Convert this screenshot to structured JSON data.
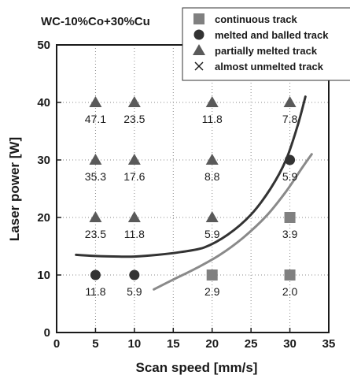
{
  "chart_data": {
    "type": "scatter",
    "title": "WC-10%Co+30%Cu",
    "xlabel": "Scan speed [mm/s]",
    "ylabel": "Laser power [W]",
    "xlim": [
      0,
      35
    ],
    "ylim": [
      0,
      50
    ],
    "xticks": [
      0,
      5,
      10,
      15,
      20,
      25,
      30,
      35
    ],
    "yticks": [
      0,
      10,
      20,
      30,
      40,
      50
    ],
    "grid": "dotted",
    "legend_position": "top-right",
    "legend": [
      {
        "label": "continuous track",
        "marker": "square",
        "color": "#808080"
      },
      {
        "label": "melted and balled track",
        "marker": "circle",
        "color": "#333333"
      },
      {
        "label": "partially melted track",
        "marker": "triangle",
        "color": "#5a5a5a"
      },
      {
        "label": "almost unmelted track",
        "marker": "x",
        "color": "#1a1a1a"
      }
    ],
    "points": [
      {
        "x": 5,
        "y": 40,
        "marker": "triangle",
        "label": "47.1"
      },
      {
        "x": 10,
        "y": 40,
        "marker": "triangle",
        "label": "23.5"
      },
      {
        "x": 20,
        "y": 40,
        "marker": "triangle",
        "label": "11.8"
      },
      {
        "x": 30,
        "y": 40,
        "marker": "triangle",
        "label": "7.8"
      },
      {
        "x": 5,
        "y": 30,
        "marker": "triangle",
        "label": "35.3"
      },
      {
        "x": 10,
        "y": 30,
        "marker": "triangle",
        "label": "17.6"
      },
      {
        "x": 20,
        "y": 30,
        "marker": "triangle",
        "label": "8.8"
      },
      {
        "x": 30,
        "y": 30,
        "marker": "circle",
        "label": "5.9"
      },
      {
        "x": 5,
        "y": 20,
        "marker": "triangle",
        "label": "23.5"
      },
      {
        "x": 10,
        "y": 20,
        "marker": "triangle",
        "label": "11.8"
      },
      {
        "x": 20,
        "y": 20,
        "marker": "triangle",
        "label": "5.9"
      },
      {
        "x": 30,
        "y": 20,
        "marker": "square",
        "label": "3.9"
      },
      {
        "x": 5,
        "y": 10,
        "marker": "circle",
        "label": "11.8"
      },
      {
        "x": 10,
        "y": 10,
        "marker": "circle",
        "label": "5.9"
      },
      {
        "x": 20,
        "y": 10,
        "marker": "square",
        "label": "2.9"
      },
      {
        "x": 30,
        "y": 10,
        "marker": "square",
        "label": "2.0"
      }
    ],
    "curves": [
      {
        "color": "#333333",
        "points": [
          [
            2.5,
            13.5
          ],
          [
            5,
            13.3
          ],
          [
            8,
            13.2
          ],
          [
            10,
            13.2
          ],
          [
            13,
            13.5
          ],
          [
            16,
            14
          ],
          [
            19,
            14.8
          ],
          [
            22,
            17
          ],
          [
            25,
            20.5
          ],
          [
            27.5,
            25
          ],
          [
            29.5,
            30
          ],
          [
            31,
            36
          ],
          [
            32,
            41
          ]
        ]
      },
      {
        "color": "#8a8a8a",
        "points": [
          [
            12.5,
            7.5
          ],
          [
            15,
            9.2
          ],
          [
            18,
            11.2
          ],
          [
            21,
            13.5
          ],
          [
            24,
            16.5
          ],
          [
            27,
            20.3
          ],
          [
            29.5,
            24.5
          ],
          [
            31.5,
            28.5
          ],
          [
            32.8,
            31
          ]
        ]
      }
    ]
  }
}
